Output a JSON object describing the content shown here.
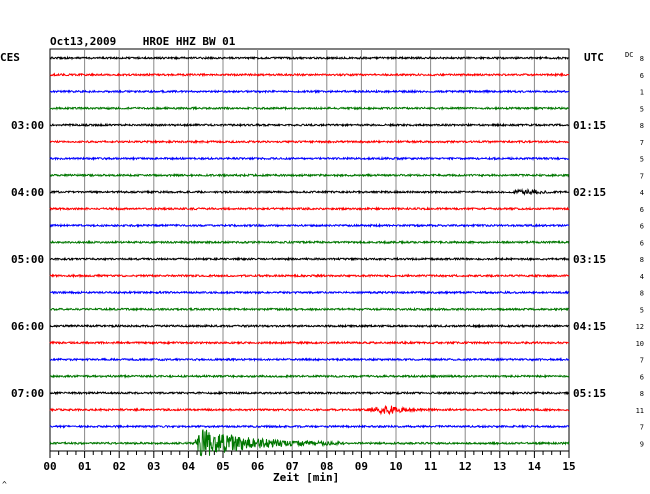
{
  "chart_data": {
    "type": "line",
    "title": "Oct13,2009    HROE HHZ BW 01",
    "left_timezone": "CES",
    "right_timezone": "UTC",
    "dc_header": "DC",
    "xlabel": "Zeit [min]",
    "xlim": [
      0,
      15
    ],
    "x_tick_labels": [
      "00",
      "01",
      "02",
      "03",
      "04",
      "05",
      "06",
      "07",
      "08",
      "09",
      "10",
      "11",
      "12",
      "13",
      "14",
      "15"
    ],
    "trace_colors": [
      "#000000",
      "#ff0000",
      "#0000ff",
      "#007700"
    ],
    "trace_count": 24,
    "left_hour_labels": [
      {
        "trace": 4,
        "label": "03:00"
      },
      {
        "trace": 8,
        "label": "04:00"
      },
      {
        "trace": 12,
        "label": "05:00"
      },
      {
        "trace": 16,
        "label": "06:00"
      },
      {
        "trace": 20,
        "label": "07:00"
      }
    ],
    "right_hour_labels": [
      {
        "trace": 4,
        "label": "01:15"
      },
      {
        "trace": 8,
        "label": "02:15"
      },
      {
        "trace": 12,
        "label": "03:15"
      },
      {
        "trace": 16,
        "label": "04:15"
      },
      {
        "trace": 20,
        "label": "05:15"
      }
    ],
    "dc_values": [
      "8",
      "6",
      "1",
      "5",
      "8",
      "7",
      "5",
      "7",
      "4",
      "6",
      "6",
      "6",
      "8",
      "4",
      "8",
      "5",
      "12",
      "10",
      "7",
      "6",
      "8",
      "11",
      "7",
      "9"
    ],
    "events": [
      {
        "trace": 21,
        "start_min": 9.2,
        "end_min": 11.0,
        "peak_min": 9.8,
        "relative_amplitude": 2.5
      },
      {
        "trace": 23,
        "start_min": 4.2,
        "end_min": 8.5,
        "peak_min": 4.4,
        "relative_amplitude": 9.0
      },
      {
        "trace": 8,
        "start_min": 13.4,
        "end_min": 14.5,
        "peak_min": 14.0,
        "relative_amplitude": 1.4
      }
    ],
    "grid": true
  },
  "corner_mark": "^"
}
